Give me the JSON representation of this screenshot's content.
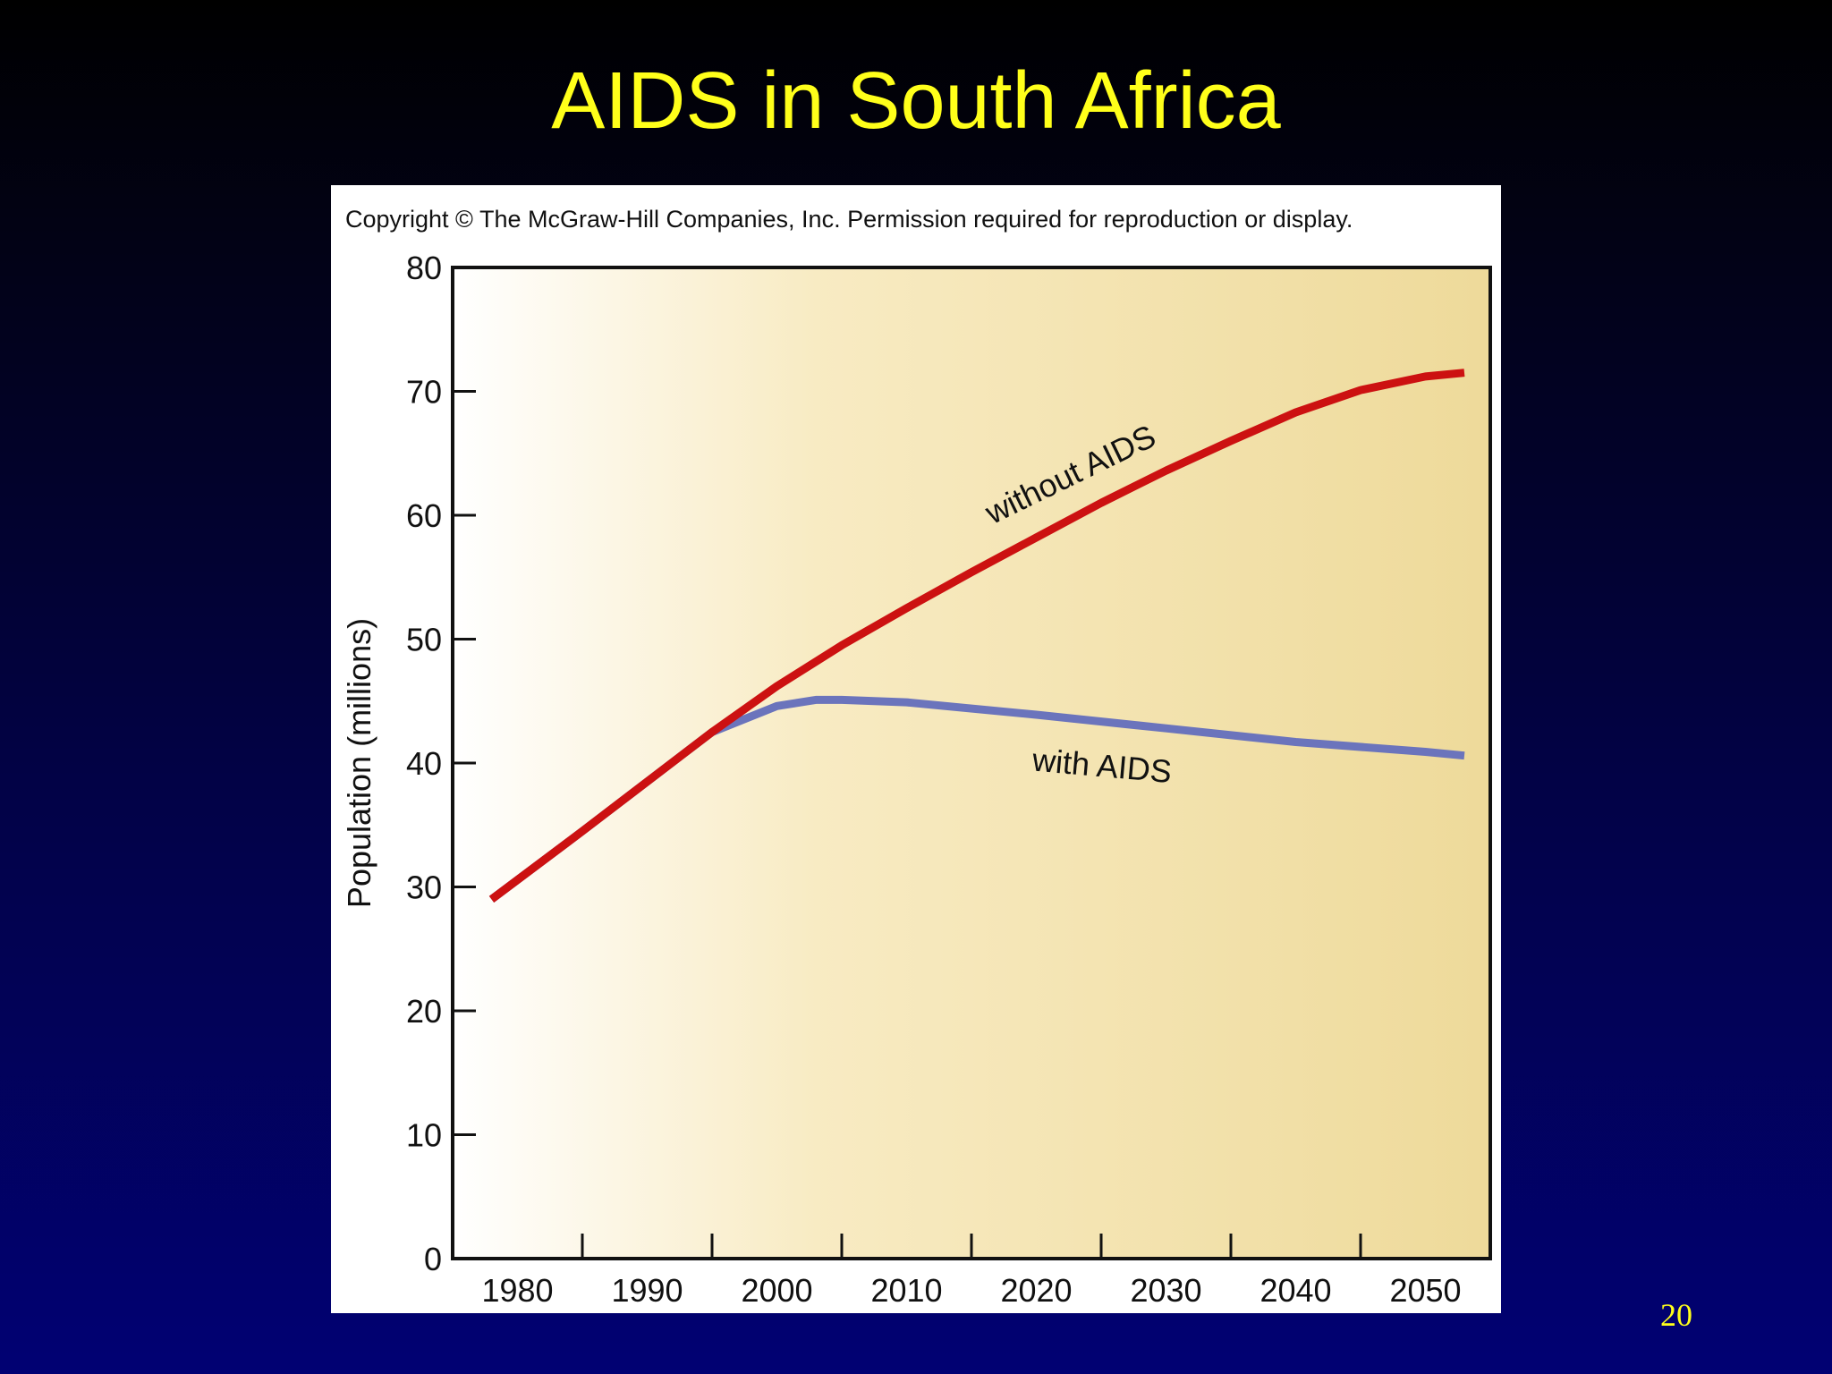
{
  "slide": {
    "title": "AIDS in South Africa",
    "page_number": "20",
    "title_color": "#FFFF1A"
  },
  "figure": {
    "copyright": "Copyright © The McGraw-Hill Companies, Inc. Permission required for reproduction or display."
  },
  "chart_data": {
    "type": "line",
    "title": "",
    "xlabel": "",
    "ylabel": "Population (millions)",
    "xlim": [
      1975,
      2055
    ],
    "ylim": [
      0,
      80
    ],
    "x_ticks": [
      1980,
      1990,
      2000,
      2010,
      2020,
      2030,
      2040,
      2050
    ],
    "y_ticks": [
      0,
      10,
      20,
      30,
      40,
      50,
      60,
      70,
      80
    ],
    "grid": false,
    "legend": "none",
    "series": [
      {
        "name": "without AIDS",
        "color": "#CC1111",
        "x": [
          1978,
          1985,
          1990,
          1995,
          2000,
          2005,
          2010,
          2015,
          2020,
          2025,
          2030,
          2035,
          2040,
          2045,
          2050,
          2053
        ],
        "y": [
          29.0,
          34.5,
          38.5,
          42.5,
          46.2,
          49.5,
          52.5,
          55.4,
          58.2,
          61.0,
          63.6,
          66.0,
          68.3,
          70.1,
          71.2,
          71.5
        ]
      },
      {
        "name": "with AIDS",
        "color": "#6B74BC",
        "x": [
          1978,
          1985,
          1990,
          1995,
          2000,
          2003,
          2005,
          2010,
          2020,
          2030,
          2040,
          2050,
          2053
        ],
        "y": [
          29.0,
          34.5,
          38.5,
          42.5,
          44.6,
          45.1,
          45.1,
          44.9,
          43.9,
          42.8,
          41.7,
          40.9,
          40.6
        ]
      }
    ],
    "annotations": [
      {
        "text": "without AIDS",
        "x": 2023,
        "y": 62.5,
        "angle": -26,
        "color": "#111111"
      },
      {
        "text": "with AIDS",
        "x": 2025,
        "y": 38.9,
        "angle": 5,
        "color": "#111111"
      }
    ],
    "background": [
      "#FFFFFF",
      "#F8EBC3",
      "#EEDA9A"
    ],
    "axis_color": "#111111"
  }
}
